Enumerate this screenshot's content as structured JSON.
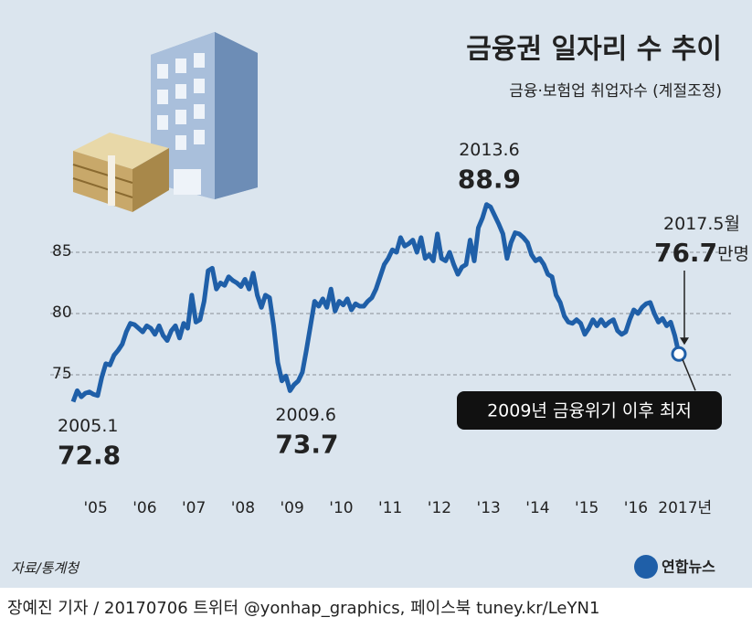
{
  "chart_data": {
    "type": "line",
    "title": "금융권 일자리 수 추이",
    "subtitle": "금융·보험업 취업자수 (계절조정)",
    "x": [
      "2005.1",
      "2005.2",
      "2005.3",
      "2005.4",
      "2005.5",
      "2005.6",
      "2005.7",
      "2005.8",
      "2005.9",
      "2005.10",
      "2005.11",
      "2005.12",
      "2006.1",
      "2006.2",
      "2006.3",
      "2006.4",
      "2006.5",
      "2006.6",
      "2006.7",
      "2006.8",
      "2006.9",
      "2006.10",
      "2006.11",
      "2006.12",
      "2007.1",
      "2007.2",
      "2007.3",
      "2007.4",
      "2007.5",
      "2007.6",
      "2007.7",
      "2007.8",
      "2007.9",
      "2007.10",
      "2007.11",
      "2007.12",
      "2008.1",
      "2008.2",
      "2008.3",
      "2008.4",
      "2008.5",
      "2008.6",
      "2008.7",
      "2008.8",
      "2008.9",
      "2008.10",
      "2008.11",
      "2008.12",
      "2009.1",
      "2009.2",
      "2009.3",
      "2009.4",
      "2009.5",
      "2009.6",
      "2009.7",
      "2009.8",
      "2009.9",
      "2009.10",
      "2009.11",
      "2009.12",
      "2010.1",
      "2010.2",
      "2010.3",
      "2010.4",
      "2010.5",
      "2010.6",
      "2010.7",
      "2010.8",
      "2010.9",
      "2010.10",
      "2010.11",
      "2010.12",
      "2011.1",
      "2011.2",
      "2011.3",
      "2011.4",
      "2011.5",
      "2011.6",
      "2011.7",
      "2011.8",
      "2011.9",
      "2011.10",
      "2011.11",
      "2011.12",
      "2012.1",
      "2012.2",
      "2012.3",
      "2012.4",
      "2012.5",
      "2012.6",
      "2012.7",
      "2012.8",
      "2012.9",
      "2012.10",
      "2012.11",
      "2012.12",
      "2013.1",
      "2013.2",
      "2013.3",
      "2013.4",
      "2013.5",
      "2013.6",
      "2013.7",
      "2013.8",
      "2013.9",
      "2013.10",
      "2013.11",
      "2013.12",
      "2014.1",
      "2014.2",
      "2014.3",
      "2014.4",
      "2014.5",
      "2014.6",
      "2014.7",
      "2014.8",
      "2014.9",
      "2014.10",
      "2014.11",
      "2014.12",
      "2015.1",
      "2015.2",
      "2015.3",
      "2015.4",
      "2015.5",
      "2015.6",
      "2015.7",
      "2015.8",
      "2015.9",
      "2015.10",
      "2015.11",
      "2015.12",
      "2016.1",
      "2016.2",
      "2016.3",
      "2016.4",
      "2016.5",
      "2016.6",
      "2016.7",
      "2016.8",
      "2016.9",
      "2016.10",
      "2016.11",
      "2016.12",
      "2017.1",
      "2017.2",
      "2017.3",
      "2017.4",
      "2017.5"
    ],
    "values": [
      72.8,
      73.7,
      73.2,
      73.5,
      73.6,
      73.4,
      73.3,
      74.8,
      75.9,
      75.8,
      76.6,
      77.0,
      77.5,
      78.5,
      79.2,
      79.1,
      78.8,
      78.5,
      79.0,
      78.8,
      78.3,
      79.0,
      78.2,
      77.8,
      78.6,
      79.0,
      78.0,
      79.2,
      78.8,
      81.5,
      79.3,
      79.5,
      81.0,
      83.5,
      83.7,
      82.0,
      82.5,
      82.3,
      83.0,
      82.7,
      82.5,
      82.2,
      82.8,
      82.0,
      83.3,
      81.5,
      80.5,
      81.5,
      81.3,
      79.0,
      76.0,
      74.5,
      74.9,
      73.7,
      74.2,
      74.5,
      75.2,
      77.0,
      79.0,
      81.0,
      80.6,
      81.2,
      80.5,
      82.0,
      80.2,
      81.0,
      80.7,
      81.2,
      80.3,
      80.8,
      80.6,
      80.6,
      81.0,
      81.3,
      82.0,
      83.0,
      84.0,
      84.5,
      85.2,
      85.0,
      86.2,
      85.5,
      85.7,
      86.0,
      85.0,
      86.2,
      84.5,
      84.8,
      84.3,
      86.5,
      84.5,
      84.3,
      85.0,
      84.0,
      83.2,
      83.8,
      84.0,
      86.0,
      84.3,
      87.0,
      87.8,
      88.9,
      88.7,
      88.0,
      87.3,
      86.5,
      84.5,
      85.8,
      86.6,
      86.5,
      86.2,
      85.8,
      84.8,
      84.3,
      84.5,
      84.0,
      83.2,
      83.0,
      81.5,
      80.9,
      79.8,
      79.3,
      79.2,
      79.5,
      79.2,
      78.3,
      78.8,
      79.5,
      79.0,
      79.5,
      79.0,
      79.3,
      79.5,
      78.6,
      78.3,
      78.5,
      79.5,
      80.3,
      80.0,
      80.5,
      80.8,
      80.9,
      80.0,
      79.3,
      79.6,
      79.0,
      79.3,
      78.2,
      76.7
    ],
    "color": "#1f5fa8",
    "ylim": [
      70,
      90
    ],
    "yticks": [
      75,
      80,
      85
    ],
    "grid": true,
    "xticks": [
      {
        "value": 2005,
        "label": "'05"
      },
      {
        "value": 2006,
        "label": "'06"
      },
      {
        "value": 2007,
        "label": "'07"
      },
      {
        "value": 2008,
        "label": "'08"
      },
      {
        "value": 2009,
        "label": "'09"
      },
      {
        "value": 2010,
        "label": "'10"
      },
      {
        "value": 2011,
        "label": "'11"
      },
      {
        "value": 2012,
        "label": "'12"
      },
      {
        "value": 2013,
        "label": "'13"
      },
      {
        "value": 2014,
        "label": "'14"
      },
      {
        "value": 2015,
        "label": "'15"
      },
      {
        "value": 2016,
        "label": "'16"
      },
      {
        "value": 2017,
        "label": "2017년"
      }
    ],
    "month_suffix": "월",
    "unit": "만명",
    "note": "2009년 금융위기 이후 최저",
    "source": "자료/통계청",
    "logo": "연합뉴스"
  },
  "footer": "장예진 기자 / 20170706 트위터 @yonhap_graphics, 페이스북 tuney.kr/LeYN1"
}
